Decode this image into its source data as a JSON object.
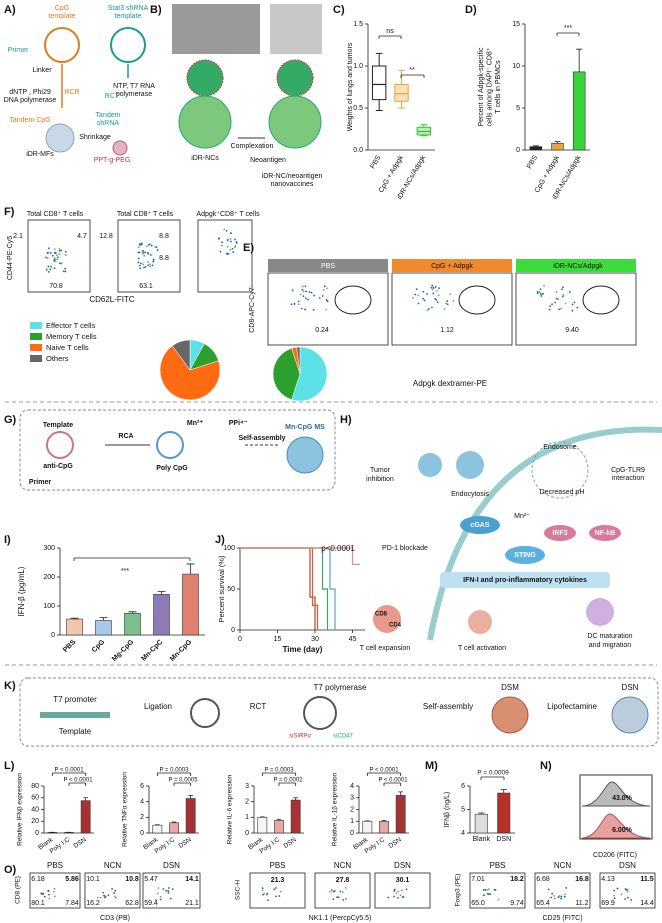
{
  "panels": {
    "A": {
      "label": "A)",
      "texts": [
        "CpG",
        "template",
        "Stat3 shRNA",
        "template",
        "Primer",
        "Linker",
        "dNTP , Phi29",
        "DNA polymerase",
        "RCR",
        "NTP, T7 RNA",
        "polymerase",
        "RCT",
        "Tandem CpG",
        "Tandem",
        "shRNA",
        "iDR-MFs",
        "Shrinkage",
        "PPT-g-PEG"
      ]
    },
    "B": {
      "label": "B)",
      "texts": [
        "iDR-NCs",
        "Complexation",
        "Neoantigen",
        "iDR-NC/neoantigen",
        "nanovaccines"
      ]
    },
    "C": {
      "label": "C)",
      "chart": {
        "type": "box",
        "ylabel": [
          "Weights of lungs and tumors"
        ],
        "categories": [
          "PBS",
          "CpG + Adpgk",
          "iDR-NCs/Adpgk"
        ],
        "colors": [
          "#222222",
          "#e8a53a",
          "#3bbf3b"
        ],
        "boxes": [
          {
            "min": 0.47,
            "q1": 0.6,
            "median": 0.78,
            "q3": 1.0,
            "max": 1.15
          },
          {
            "min": 0.5,
            "q1": 0.58,
            "median": 0.67,
            "q3": 0.78,
            "max": 0.95
          },
          {
            "min": 0.17,
            "q1": 0.18,
            "median": 0.22,
            "q3": 0.27,
            "max": 0.3
          }
        ],
        "ylim": [
          0,
          1.5
        ],
        "yticks": [
          {
            "value": 0,
            "label": "0.0"
          },
          0.5,
          {
            "value": 1,
            "label": "1.0"
          },
          1.5
        ],
        "annotations": [
          "ns",
          "**"
        ]
      }
    },
    "D": {
      "label": "D)",
      "chart": {
        "type": "bar",
        "ylabel": [
          "Percent of Adpgk-specific",
          "cells among DAPI⁻ CD8⁺",
          "T cells in PBMCs"
        ],
        "categories": [
          "PBS",
          "CpG + Adpgk",
          "iDR-NCs/Adpgk"
        ],
        "colors": [
          "#222222",
          "#e8a53a",
          "#3bd13b"
        ],
        "values": [
          0.4,
          0.8,
          9.3
        ],
        "errors": [
          0.1,
          0.2,
          2.7
        ],
        "ylim": [
          0,
          15
        ],
        "yticks": [
          0,
          5,
          10,
          15
        ],
        "annotations": [
          "***"
        ]
      }
    },
    "E": {
      "label": "E)",
      "texts": [
        "PBS",
        "CpG + Adpgk",
        "iDR-NCs/Adpgk",
        "0.24",
        "1.12",
        "9.40",
        "CD8-APC-Cy7",
        "Adpgk dextramer-PE"
      ]
    },
    "F": {
      "label": "F)",
      "texts": [
        "Total CD8⁺ T cells",
        "Total CD8⁺ T cells",
        "Adpgk⁺CD8⁺ T cells",
        "2.1",
        "4.7",
        "70.8",
        "12.8",
        "8.8",
        "8.8",
        "63.1",
        "CD44-PE-Cy5",
        "CD62L-FITC"
      ],
      "chart": {
        "type": "pie",
        "categories": [
          "Effector T cells",
          "Memory T cells",
          "Naive T cells",
          "Others"
        ],
        "colors": [
          "#5ce1e6",
          "#2ca02c",
          "#ff6a13",
          "#666666"
        ],
        "pies": [
          [
            8,
            12,
            70,
            10
          ],
          [
            55,
            40,
            3,
            2
          ]
        ]
      }
    },
    "G": {
      "label": "G)",
      "texts": [
        "Template",
        "RCA",
        "Mn²⁺",
        "PPi⁴⁻",
        "Self-assembly",
        "Mn-CpG MS",
        "anti-CpG",
        "Poly CpG",
        "Primer"
      ]
    },
    "H": {
      "label": "H)",
      "texts": [
        "Tumor",
        "inhibition",
        "Endocytosis",
        "Endosome",
        "CpG-TLR9",
        "interaction",
        "Decreased pH",
        "Mn²⁺",
        "cGAS",
        "STING",
        "IRF3",
        "NF-kB",
        "PD-1 blockade",
        "IFN-I and  pro-inflammatory cytokines",
        "CD8",
        "CD4",
        "T cell expansion",
        "T cell activation",
        "DC maturation",
        "and migration"
      ]
    },
    "I": {
      "label": "I)",
      "chart": {
        "type": "bar",
        "ylabel": [
          "IFN-β (pg/mL)"
        ],
        "categories": [
          "PBS",
          "CpG",
          "Mg-CpG",
          "Mn-CpC",
          "Mn-CpG"
        ],
        "colors": [
          "#f2c6a8",
          "#a8c8e8",
          "#7bbf8a",
          "#8e7ab5",
          "#e08070"
        ],
        "values": [
          55,
          50,
          75,
          140,
          210
        ],
        "errors": [
          3,
          10,
          5,
          10,
          35
        ],
        "ylim": [
          0,
          300
        ],
        "yticks": [
          0,
          100,
          200,
          300
        ],
        "annotations": [
          "***"
        ]
      }
    },
    "J": {
      "label": "J)",
      "chart": {
        "type": "step",
        "ylabel": [
          "Percent survival (%)"
        ],
        "xlabel": "Time (day)",
        "xlim": [
          0,
          50
        ],
        "xticks": [
          0,
          15,
          30,
          45
        ],
        "ylim": [
          0,
          100
        ],
        "yticks": [
          0,
          50,
          100
        ],
        "annotations": [
          "p<0.0001"
        ],
        "series": [
          {
            "color": "#a0522d",
            "x": [
              0,
              28,
              30
            ],
            "values": [
              100,
              40,
              0
            ]
          },
          {
            "color": "#e8553a",
            "x": [
              0,
              29,
              31
            ],
            "values": [
              100,
              30,
              0
            ]
          },
          {
            "color": "#3ba55c",
            "x": [
              0,
              33,
              35
            ],
            "values": [
              100,
              50,
              0
            ]
          },
          {
            "color": "#5aa0c8",
            "x": [
              0,
              36,
              38
            ],
            "values": [
              100,
              50,
              0
            ]
          },
          {
            "color": "#e89080",
            "x": [
              0,
              45,
              48
            ],
            "values": [
              100,
              80,
              80
            ]
          }
        ]
      }
    },
    "K": {
      "label": "K)",
      "texts": [
        "T7 promoter",
        "Template",
        "Ligation",
        "RCT",
        "T7 polymerase",
        "siSIRPα",
        "siCD47",
        "Self-assembly",
        "DSM",
        "Lipofectamine",
        "DSN"
      ]
    },
    "L": {
      "label": "L)",
      "charts": [
        {
          "type": "bar",
          "ylabel": [
            "Relative IFNβ expression"
          ],
          "categories": [
            "Blank",
            "Poly I:C",
            "DSN"
          ],
          "colors": [
            "#f4f4f4",
            "#e8a8a8",
            "#a83232"
          ],
          "values": [
            1,
            1,
            55
          ],
          "errors": [
            0.2,
            0.2,
            5
          ],
          "ylim": [
            0,
            80
          ],
          "yticks": [
            0,
            20,
            40,
            60,
            80
          ],
          "annotations": [
            "P < 0.0001",
            "P < 0.0001"
          ]
        },
        {
          "type": "bar",
          "ylabel": [
            "Relative TNFα expression"
          ],
          "categories": [
            "Blank",
            "Poly I:C",
            "DSN"
          ],
          "colors": [
            "#f4f4f4",
            "#e8a8a8",
            "#a83232"
          ],
          "values": [
            1,
            1.3,
            4.4
          ],
          "errors": [
            0.05,
            0.1,
            0.4
          ],
          "ylim": [
            0,
            6
          ],
          "yticks": [
            0,
            2,
            4,
            6
          ],
          "annotations": [
            "P = 0.0003",
            "P = 0.0005"
          ]
        },
        {
          "type": "bar",
          "ylabel": [
            "Relative IL-6 expression"
          ],
          "categories": [
            "Blank",
            "Poly I:C",
            "DSN"
          ],
          "colors": [
            "#f4f4f4",
            "#e8a8a8",
            "#a83232"
          ],
          "values": [
            1,
            0.8,
            2.1
          ],
          "errors": [
            0.03,
            0.08,
            0.15
          ],
          "ylim": [
            0,
            3
          ],
          "yticks": [
            0,
            1,
            2,
            3
          ],
          "annotations": [
            "P = 0.0003",
            "P = 0.0002"
          ]
        },
        {
          "type": "bar",
          "ylabel": [
            "Relative IL-1β expression"
          ],
          "categories": [
            "Blank",
            "Poly I:C",
            "DSN"
          ],
          "colors": [
            "#f4f4f4",
            "#e8a8a8",
            "#a83232"
          ],
          "values": [
            1,
            1,
            3.2
          ],
          "errors": [
            0.03,
            0.05,
            0.3
          ],
          "ylim": [
            0,
            4
          ],
          "yticks": [
            0,
            1,
            2,
            3,
            4
          ],
          "annotations": [
            "P < 0.0001",
            "P < 0.0001"
          ]
        }
      ]
    },
    "M": {
      "label": "M)",
      "chart": {
        "type": "bar",
        "ylabel": [
          "IFNβ (ng/L)"
        ],
        "categories": [
          "Blank",
          "DSN"
        ],
        "colors": [
          "#dddddd",
          "#b8302a"
        ],
        "values": [
          4.8,
          5.7
        ],
        "errors": [
          0.05,
          0.15
        ],
        "ylim": [
          4,
          6
        ],
        "yticks": [
          4,
          5,
          6
        ],
        "annotations": [
          "P = 0.0009"
        ]
      }
    },
    "N": {
      "label": "N)",
      "texts": [
        "43.0%",
        "6.00%",
        "CD206 (FITC)"
      ]
    },
    "O": {
      "label": "O)",
      "groups": [
        {
          "headers": [
            "PBS",
            "NCN",
            "DSN"
          ],
          "quadrants": [
            [
              "6.18",
              "5.86",
              "80.1",
              "7.84"
            ],
            [
              "10.1",
              "10.8",
              "16.2",
              "62.8"
            ],
            [
              "5.47",
              "14.1",
              "59.4",
              "21.1"
            ]
          ],
          "ylabel": "CD8 (PE)",
          "xlabel": "CD3 (PB)"
        },
        {
          "headers": [
            "PBS",
            "NCN",
            "DSN"
          ],
          "quadrants": [
            [
              "21.3"
            ],
            [
              "27.8"
            ],
            [
              "30.1"
            ]
          ],
          "ylabel": "SSC-H",
          "xlabel": "NK1.1 (PercpCy5.5)"
        },
        {
          "headers": [
            "PBS",
            "NCN",
            "DSN"
          ],
          "quadrants": [
            [
              "7.01",
              "18.2",
              "65.0",
              "9.74"
            ],
            [
              "6.68",
              "16.8",
              "65.4",
              "11.2"
            ],
            [
              "4.13",
              "11.5",
              "69.9",
              "14.4"
            ]
          ],
          "ylabel": "Foxp3 (PE)",
          "xlabel": "CD25 (FITC)"
        }
      ]
    }
  }
}
